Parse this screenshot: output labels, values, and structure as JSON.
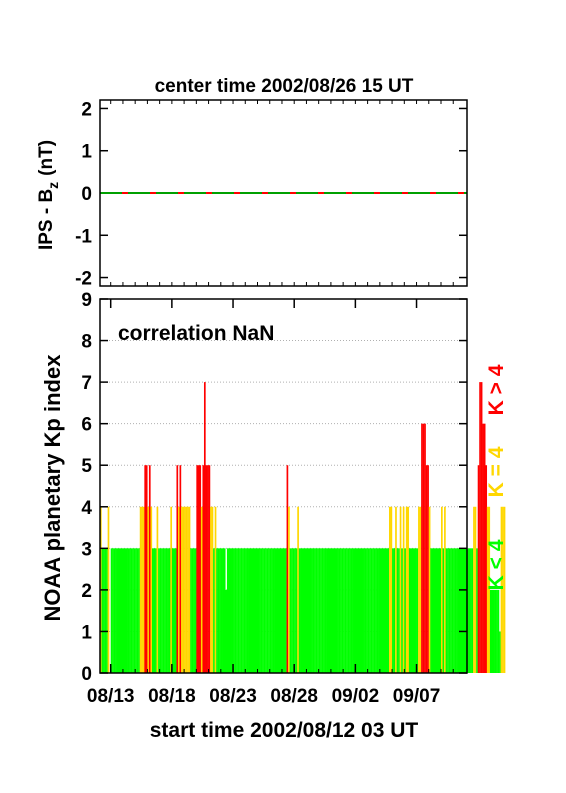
{
  "chart_data": [
    {
      "type": "line",
      "title": "center time 2002/08/26 15 UT",
      "ylabel": "IPS - B",
      "ylabel_sub": "z",
      "ylabel_unit": "(nT)",
      "ylim": [
        -2.2,
        2.2
      ],
      "yticks": [
        2,
        1,
        0,
        -1,
        -2
      ],
      "grid": false,
      "series": [
        {
          "color": "#ff0000",
          "values_note": "",
          "x": [
            0,
            30
          ],
          "y": [
            0,
            0
          ]
        },
        {
          "color": "#00a000",
          "x": [
            0,
            30
          ],
          "y": [
            0,
            0
          ]
        }
      ]
    },
    {
      "type": "bar",
      "ylabel": "NOAA planetary Kp index",
      "xlabel": "start time 2002/08/12 03 UT",
      "annotation": "correlation NaN",
      "ylim": [
        0,
        9
      ],
      "yticks": [
        0,
        1,
        2,
        3,
        4,
        5,
        6,
        7,
        8,
        9
      ],
      "xticks": [
        "08/13",
        "08/18",
        "08/23",
        "08/28",
        "09/02",
        "09/07"
      ],
      "xtick_days": [
        0.875,
        5.875,
        10.875,
        15.875,
        20.875,
        25.875
      ],
      "xlim_days": [
        0,
        30
      ],
      "grid": true,
      "legend": [
        {
          "label": "K < 4",
          "color": "#00ff00"
        },
        {
          "label": "K = 4",
          "color": "#ffd700"
        },
        {
          "label": "K > 4",
          "color": "#ff0000"
        }
      ],
      "kp_values": [
        4,
        3,
        3,
        3,
        3,
        4,
        0,
        3,
        3,
        3,
        3,
        3,
        3,
        3,
        3,
        3,
        3,
        3,
        3,
        3,
        3,
        3,
        3,
        3,
        3,
        3,
        4,
        4,
        4,
        5,
        5,
        4,
        5,
        4,
        3,
        3,
        3,
        4,
        3,
        3,
        3,
        3,
        3,
        3,
        3,
        3,
        4,
        3,
        3,
        3,
        5,
        4,
        5,
        4,
        4,
        4,
        4,
        4,
        4,
        3,
        3,
        3,
        3,
        5,
        5,
        5,
        4,
        5,
        7,
        5,
        5,
        5,
        4,
        4,
        3,
        4,
        3,
        3,
        3,
        3,
        3,
        3,
        2,
        3,
        3,
        3,
        3,
        3,
        3,
        3,
        3,
        3,
        3,
        3,
        3,
        3,
        3,
        3,
        3,
        3,
        3,
        3,
        3,
        3,
        3,
        3,
        3,
        3,
        3,
        3,
        3,
        3,
        3,
        3,
        3,
        3,
        3,
        3,
        3,
        3,
        3,
        3,
        5,
        4,
        3,
        3,
        3,
        3,
        3,
        4,
        3,
        3,
        3,
        3,
        3,
        3,
        3,
        3,
        3,
        3,
        3,
        3,
        3,
        3,
        3,
        3,
        3,
        3,
        3,
        3,
        3,
        3,
        3,
        3,
        3,
        3,
        3,
        3,
        3,
        3,
        3,
        3,
        3,
        3,
        3,
        3,
        3,
        3,
        3,
        3,
        3,
        3,
        3,
        3,
        3,
        3,
        3,
        3,
        3,
        3,
        3,
        3,
        3,
        3,
        3,
        3,
        3,
        3,
        3,
        4,
        4,
        3,
        3,
        4,
        3,
        3,
        4,
        3,
        4,
        3,
        4,
        4,
        3,
        3,
        3,
        3,
        3,
        3,
        4,
        4,
        6,
        6,
        6,
        5,
        5,
        4,
        3,
        3,
        3,
        3,
        3,
        3,
        3,
        4,
        3,
        4,
        3,
        3,
        3,
        3,
        3,
        3,
        3,
        3,
        3,
        3,
        3,
        3,
        3,
        3,
        3,
        3,
        3,
        3,
        4,
        4,
        3,
        5,
        7,
        7,
        6,
        6,
        5,
        4,
        4,
        2,
        2,
        2,
        2,
        2,
        2,
        1,
        4,
        4,
        4
      ]
    }
  ]
}
